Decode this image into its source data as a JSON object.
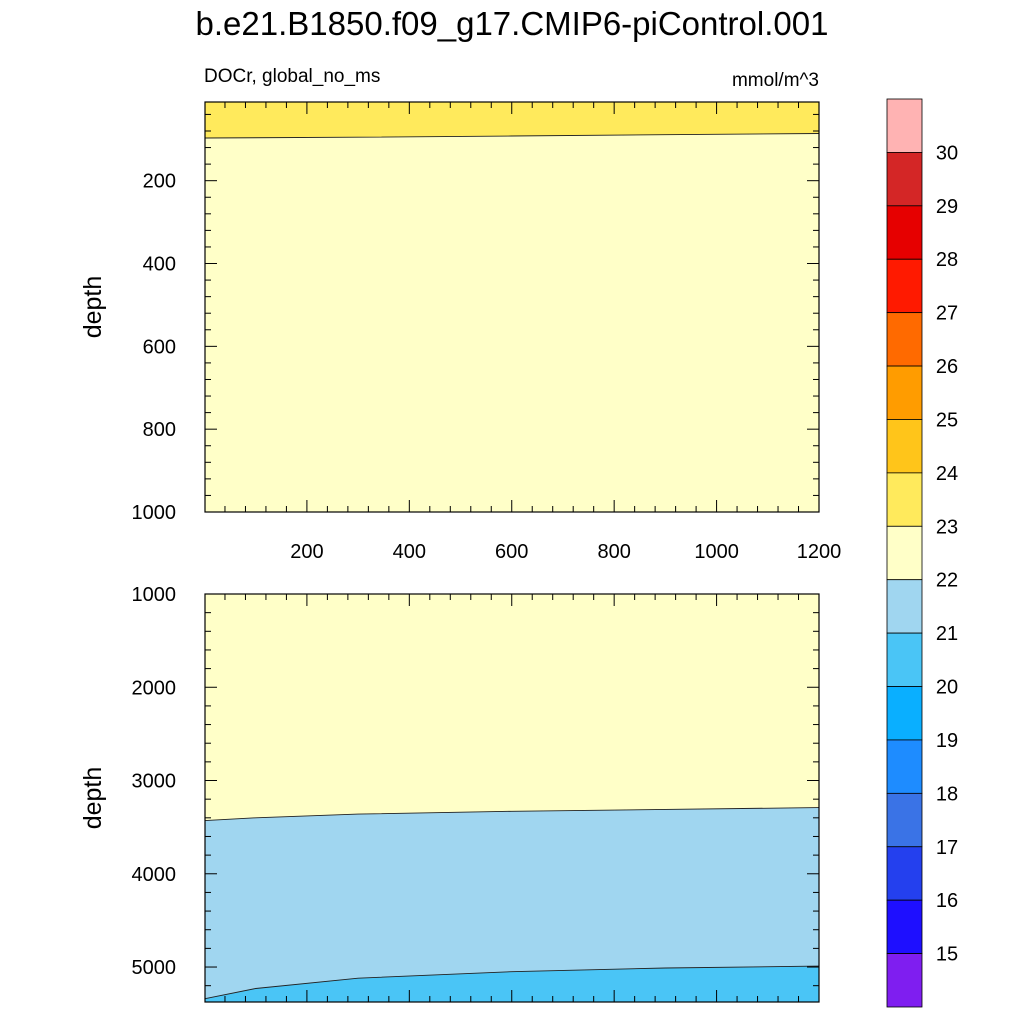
{
  "chart_data": {
    "type": "contour",
    "title": "b.e21.B1850.f09_g17.CMIP6-piControl.001",
    "left_string": "DOCr, global_no_ms",
    "right_string": "mmol/m^3",
    "ylabel": "depth",
    "xlim": [
      1,
      1200
    ],
    "x_ticks": [
      200,
      400,
      600,
      800,
      1000,
      1200
    ],
    "panels": [
      {
        "ylim": [
          10,
          1000
        ],
        "y_ticks": [
          200,
          400,
          600,
          800,
          1000
        ],
        "y_direction": "down",
        "show_x_tick_labels": true,
        "bands": [
          {
            "level_above": 23,
            "color": "#ffea5c",
            "boundary_depth": [
              [
                1,
                97
              ],
              [
                300,
                95
              ],
              [
                600,
                92
              ],
              [
                900,
                89
              ],
              [
                1200,
                86
              ]
            ]
          },
          {
            "level_above": 22,
            "color": "#ffffc8",
            "boundary_depth": null
          }
        ]
      },
      {
        "ylim": [
          1000,
          5375
        ],
        "y_ticks": [
          1000,
          2000,
          3000,
          4000,
          5000
        ],
        "y_direction": "down",
        "show_x_tick_labels": false,
        "bands": [
          {
            "level_above": 22,
            "color": "#ffffc8",
            "boundary_depth": [
              [
                1,
                3430
              ],
              [
                100,
                3400
              ],
              [
                300,
                3360
              ],
              [
                600,
                3330
              ],
              [
                900,
                3310
              ],
              [
                1200,
                3290
              ]
            ]
          },
          {
            "level_above": 21,
            "color": "#a0d6f0",
            "boundary_depth": [
              [
                1,
                5340
              ],
              [
                100,
                5230
              ],
              [
                300,
                5120
              ],
              [
                600,
                5050
              ],
              [
                900,
                5010
              ],
              [
                1200,
                4990
              ]
            ]
          },
          {
            "level_above": 20,
            "color": "#4ac5f6",
            "boundary_depth": null
          }
        ]
      }
    ],
    "colorbar": {
      "labels": [
        "15",
        "16",
        "17",
        "18",
        "19",
        "20",
        "21",
        "22",
        "23",
        "24",
        "25",
        "26",
        "27",
        "28",
        "29",
        "30"
      ],
      "colors": [
        "#ffb3b3",
        "#d42626",
        "#e60000",
        "#ff1a00",
        "#ff6a00",
        "#ff9c00",
        "#ffc51a",
        "#ffea5c",
        "#ffffc8",
        "#a0d6f0",
        "#4ac5f6",
        "#0aafff",
        "#1e8cff",
        "#3a73e6",
        "#2440ee",
        "#1e0fff",
        "#7f1ef0"
      ]
    }
  }
}
